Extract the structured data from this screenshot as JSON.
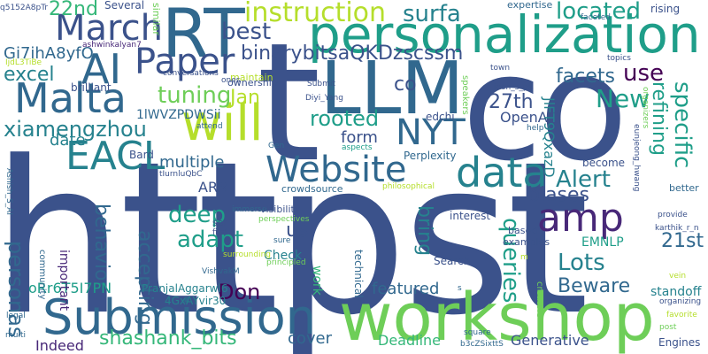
{
  "palette": {
    "navy": "#3b528b",
    "blue": "#31688e",
    "teal": "#26828e",
    "green": "#1f9e89",
    "mint": "#35b779",
    "lime": "#6ece58",
    "yellow": "#b5de2b",
    "purple": "#482878",
    "dark": "#440154"
  },
  "words": [
    {
      "name": "word-https",
      "text": "httpst",
      "color": "#3b528b"
    },
    {
      "name": "word-co",
      "text": "co",
      "color": "#3b528b"
    },
    {
      "name": "word-t",
      "text": "t",
      "color": "#3b528b"
    },
    {
      "name": "word-llm",
      "text": "LLM",
      "color": "#31688e"
    },
    {
      "name": "word-workshop",
      "text": "workshop",
      "color": "#6ece58"
    },
    {
      "name": "word-personalization",
      "text": "personalization",
      "color": "#1f9e89"
    },
    {
      "name": "word-rt",
      "text": "RT",
      "color": "#31688e"
    },
    {
      "name": "word-submission",
      "text": "Submission",
      "color": "#31688e"
    },
    {
      "name": "word-will",
      "text": "will",
      "color": "#b5de2b"
    },
    {
      "name": "word-website",
      "text": "Website",
      "color": "#31688e"
    },
    {
      "name": "word-data",
      "text": "data",
      "color": "#26828e"
    },
    {
      "name": "word-amp",
      "text": "amp",
      "color": "#482878"
    },
    {
      "name": "word-malta",
      "text": "Malta",
      "color": "#31688e"
    },
    {
      "name": "word-eacl",
      "text": "EACL",
      "color": "#26828e"
    },
    {
      "name": "word-march",
      "text": "March",
      "color": "#3b528b"
    },
    {
      "name": "word-ai",
      "text": "AI",
      "color": "#31688e"
    },
    {
      "name": "word-paper",
      "text": "Paper",
      "color": "#3b528b"
    },
    {
      "name": "word-nyt",
      "text": "NYT",
      "color": "#31688e"
    },
    {
      "name": "word-instruction",
      "text": "instruction",
      "color": "#b5de2b"
    },
    {
      "name": "word-best",
      "text": "best",
      "color": "#3b528b"
    },
    {
      "name": "word-surfa",
      "text": "surfa",
      "color": "#26828e"
    },
    {
      "name": "word-located",
      "text": "located",
      "color": "#1f9e89"
    },
    {
      "name": "word-use",
      "text": "use",
      "color": "#440154"
    },
    {
      "name": "word-facets",
      "text": "facets",
      "color": "#31688e"
    },
    {
      "name": "word-binarybits",
      "text": "binarybitsaQKDzscssm",
      "color": "#3b528b"
    },
    {
      "name": "word-excel",
      "text": "excel",
      "color": "#26828e"
    },
    {
      "name": "word-gi7iha",
      "text": "Gi7ihA8yfO",
      "color": "#31688e"
    },
    {
      "name": "word-xiamengzhou",
      "text": "xiamengzhou",
      "color": "#26828e"
    },
    {
      "name": "word-tuning",
      "text": "tuning",
      "color": "#6ece58"
    },
    {
      "name": "word-jan",
      "text": "Jan",
      "color": "#b5de2b"
    },
    {
      "name": "word-co-small",
      "text": "co",
      "color": "#3b528b"
    },
    {
      "name": "word-27th",
      "text": "27th",
      "color": "#3b528b"
    },
    {
      "name": "word-openai",
      "text": "OpenAI",
      "color": "#3b528b"
    },
    {
      "name": "word-rooted",
      "text": "rooted",
      "color": "#1f9e89"
    },
    {
      "name": "word-new",
      "text": "New",
      "color": "#1f9e89"
    },
    {
      "name": "word-refining",
      "text": "refining",
      "color": "#1f9e89"
    },
    {
      "name": "word-specific",
      "text": "specific",
      "color": "#1f9e89"
    },
    {
      "name": "word-date",
      "text": "date",
      "color": "#26828e"
    },
    {
      "name": "word-form",
      "text": "form",
      "color": "#3b528b"
    },
    {
      "name": "word-multiple",
      "text": "multiple",
      "color": "#31688e"
    },
    {
      "name": "word-alert",
      "text": "Alert",
      "color": "#26828e"
    },
    {
      "name": "word-biases",
      "text": "biases",
      "color": "#3b528b"
    },
    {
      "name": "word-behavior",
      "text": "behavior",
      "color": "#31688e"
    },
    {
      "name": "word-deep",
      "text": "deep",
      "color": "#1f9e89"
    },
    {
      "name": "word-adapt",
      "text": "adapt",
      "color": "#1f9e89"
    },
    {
      "name": "word-us",
      "text": "us",
      "color": "#3b528b"
    },
    {
      "name": "word-bring",
      "text": "bring",
      "color": "#26828e"
    },
    {
      "name": "word-queries",
      "text": "queries",
      "color": "#1f9e89"
    },
    {
      "name": "word-lots",
      "text": "Lots",
      "color": "#26828e"
    },
    {
      "name": "word-21st",
      "text": "21st",
      "color": "#31688e"
    },
    {
      "name": "word-emnlp",
      "text": "EMNLP",
      "color": "#1f9e89"
    },
    {
      "name": "word-beware",
      "text": "Beware",
      "color": "#31688e"
    },
    {
      "name": "word-personas",
      "text": "personas",
      "color": "#31688e"
    },
    {
      "name": "word-accepting",
      "text": "accepting",
      "color": "#31688e"
    },
    {
      "name": "word-orr6t",
      "text": "oRr6T5I7PN",
      "color": "#1f9e89"
    },
    {
      "name": "word-don",
      "text": "Don",
      "color": "#440154"
    },
    {
      "name": "word-featured",
      "text": "featured",
      "color": "#31688e"
    },
    {
      "name": "word-standoff",
      "text": "standoff",
      "color": "#26828e"
    },
    {
      "name": "word-shashank",
      "text": "shashank_bits",
      "color": "#35b779"
    },
    {
      "name": "word-cover",
      "text": "cover",
      "color": "#31688e"
    },
    {
      "name": "word-deadline",
      "text": "Deadline",
      "color": "#35b779"
    },
    {
      "name": "word-generative",
      "text": "Generative",
      "color": "#3b528b"
    },
    {
      "name": "word-indeed",
      "text": "Indeed",
      "color": "#482878"
    },
    {
      "name": "word-22nd",
      "text": "22nd",
      "color": "#35b779"
    },
    {
      "name": "word-arr",
      "text": "ARR",
      "color": "#3b528b"
    },
    {
      "name": "word-check",
      "text": "Check",
      "color": "#26828e"
    },
    {
      "name": "word-1lwvz",
      "text": "1lWVZPDWSii",
      "color": "#31688e"
    },
    {
      "name": "word-jlft9",
      "text": "JlFT9QxazD",
      "color": "#26828e"
    },
    {
      "name": "word-brilliant",
      "text": "brilliant",
      "color": "#3b528b"
    },
    {
      "name": "word-important",
      "text": "important",
      "color": "#482878"
    },
    {
      "name": "word-pranjal",
      "text": "PranjalAggarwl6",
      "color": "#26828e"
    },
    {
      "name": "word-4gxay",
      "text": "4GxAYvir30",
      "color": "#26828e"
    },
    {
      "name": "word-edchi",
      "text": "edchi",
      "color": "#3b528b"
    },
    {
      "name": "word-perplexity",
      "text": "Perplexity",
      "color": "#31688e"
    },
    {
      "name": "word-become",
      "text": "become",
      "color": "#3b528b"
    },
    {
      "name": "word-interest",
      "text": "interest",
      "color": "#3b528b"
    },
    {
      "name": "word-search",
      "text": "Search",
      "color": "#3b528b"
    },
    {
      "name": "word-work",
      "text": "work",
      "color": "#35b779"
    },
    {
      "name": "word-technical",
      "text": "technical",
      "color": "#31688e"
    },
    {
      "name": "word-examples",
      "text": "examples",
      "color": "#3b528b"
    },
    {
      "name": "word-based",
      "text": "based",
      "color": "#3b528b"
    },
    {
      "name": "word-several",
      "text": "Several",
      "color": "#3b528b"
    },
    {
      "name": "word-similar",
      "text": "similar",
      "color": "#6ece58"
    },
    {
      "name": "word-expertise",
      "text": "expertise",
      "color": "#31688e"
    },
    {
      "name": "word-rising",
      "text": "rising",
      "color": "#3b528b"
    },
    {
      "name": "word-faceted",
      "text": "faceted",
      "color": "#31688e"
    },
    {
      "name": "word-topics",
      "text": "topics",
      "color": "#3b528b"
    },
    {
      "name": "word-town",
      "text": "town",
      "color": "#3b528b"
    },
    {
      "name": "word-conversations",
      "text": "conversations",
      "color": "#3b528b"
    },
    {
      "name": "word-maintain",
      "text": "maintain",
      "color": "#b5de2b"
    },
    {
      "name": "word-ashwin",
      "text": "ashwinkalyan7",
      "color": "#482878"
    },
    {
      "name": "word-ijdl",
      "text": "IjdL3TiBe",
      "color": "#b5de2b"
    },
    {
      "name": "word-q5152",
      "text": "q5152A8pTr",
      "color": "#3b528b"
    },
    {
      "name": "word-ones",
      "text": "ones",
      "color": "#3b528b"
    },
    {
      "name": "word-ownership",
      "text": "ownership",
      "color": "#3b528b"
    },
    {
      "name": "word-submit",
      "text": "Submit",
      "color": "#3b528b"
    },
    {
      "name": "word-diyi",
      "text": "Diyi_Yang",
      "color": "#3b528b"
    },
    {
      "name": "word-speakers",
      "text": "speakers",
      "color": "#6ece58"
    },
    {
      "name": "word-joon",
      "text": "joon_s_pk",
      "color": "#3b528b"
    },
    {
      "name": "word-organizers",
      "text": "organizers",
      "color": "#6ece58"
    },
    {
      "name": "word-eunjeong",
      "text": "eunjeong_hwang",
      "color": "#3b528b"
    },
    {
      "name": "word-help",
      "text": "help",
      "color": "#31688e"
    },
    {
      "name": "word-attend",
      "text": "attend",
      "color": "#31688e"
    },
    {
      "name": "word-gen",
      "text": "Gen",
      "color": "#31688e"
    },
    {
      "name": "word-aspects",
      "text": "aspects",
      "color": "#1f9e89"
    },
    {
      "name": "word-philosophical",
      "text": "philosophical",
      "color": "#b5de2b"
    },
    {
      "name": "word-better",
      "text": "better",
      "color": "#31688e"
    },
    {
      "name": "word-ashish",
      "text": "Ashish_S_AI",
      "color": "#31688e"
    },
    {
      "name": "word-bard",
      "text": "Bard",
      "color": "#3b528b"
    },
    {
      "name": "word-tiurn",
      "text": "tIurnluQbC",
      "color": "#3b528b"
    },
    {
      "name": "word-crowdsource",
      "text": "crowdsource",
      "color": "#31688e"
    },
    {
      "name": "word-immerse",
      "text": "immerse",
      "color": "#31688e"
    },
    {
      "name": "word-perspectives",
      "text": "perspectives",
      "color": "#6ece58"
    },
    {
      "name": "word-visibility",
      "text": "visibility",
      "color": "#3b528b"
    },
    {
      "name": "word-set",
      "text": "set",
      "color": "#3b528b"
    },
    {
      "name": "word-first",
      "text": "first",
      "color": "#3b528b"
    },
    {
      "name": "word-sure",
      "text": "sure",
      "color": "#31688e"
    },
    {
      "name": "word-community",
      "text": "community",
      "color": "#31688e"
    },
    {
      "name": "word-vishvak",
      "text": "VishvakM",
      "color": "#31688e"
    },
    {
      "name": "word-principled",
      "text": "principled",
      "color": "#6ece58"
    },
    {
      "name": "word-surrounding",
      "text": "surrounding",
      "color": "#b5de2b"
    },
    {
      "name": "word-provide",
      "text": "provide",
      "color": "#3b528b"
    },
    {
      "name": "word-karthik",
      "text": "karthik_r_n",
      "color": "#3b528b"
    },
    {
      "name": "word-vein",
      "text": "vein",
      "color": "#b5de2b"
    },
    {
      "name": "word-m",
      "text": "m",
      "color": "#b5de2b"
    },
    {
      "name": "word-s",
      "text": "s",
      "color": "#31688e"
    },
    {
      "name": "word-creators",
      "text": "creators",
      "color": "#6ece58"
    },
    {
      "name": "word-organizing",
      "text": "organizing",
      "color": "#3b528b"
    },
    {
      "name": "word-favorite",
      "text": "favorite",
      "color": "#b5de2b"
    },
    {
      "name": "word-post",
      "text": "post",
      "color": "#6ece58"
    },
    {
      "name": "word-legal",
      "text": "legal",
      "color": "#31688e"
    },
    {
      "name": "word-multi",
      "text": "multi",
      "color": "#31688e"
    },
    {
      "name": "word-square",
      "text": "square",
      "color": "#31688e"
    },
    {
      "name": "word-b3cz",
      "text": "b3cZSixttS",
      "color": "#31688e"
    },
    {
      "name": "word-engines",
      "text": "Engines",
      "color": "#3b528b"
    }
  ]
}
